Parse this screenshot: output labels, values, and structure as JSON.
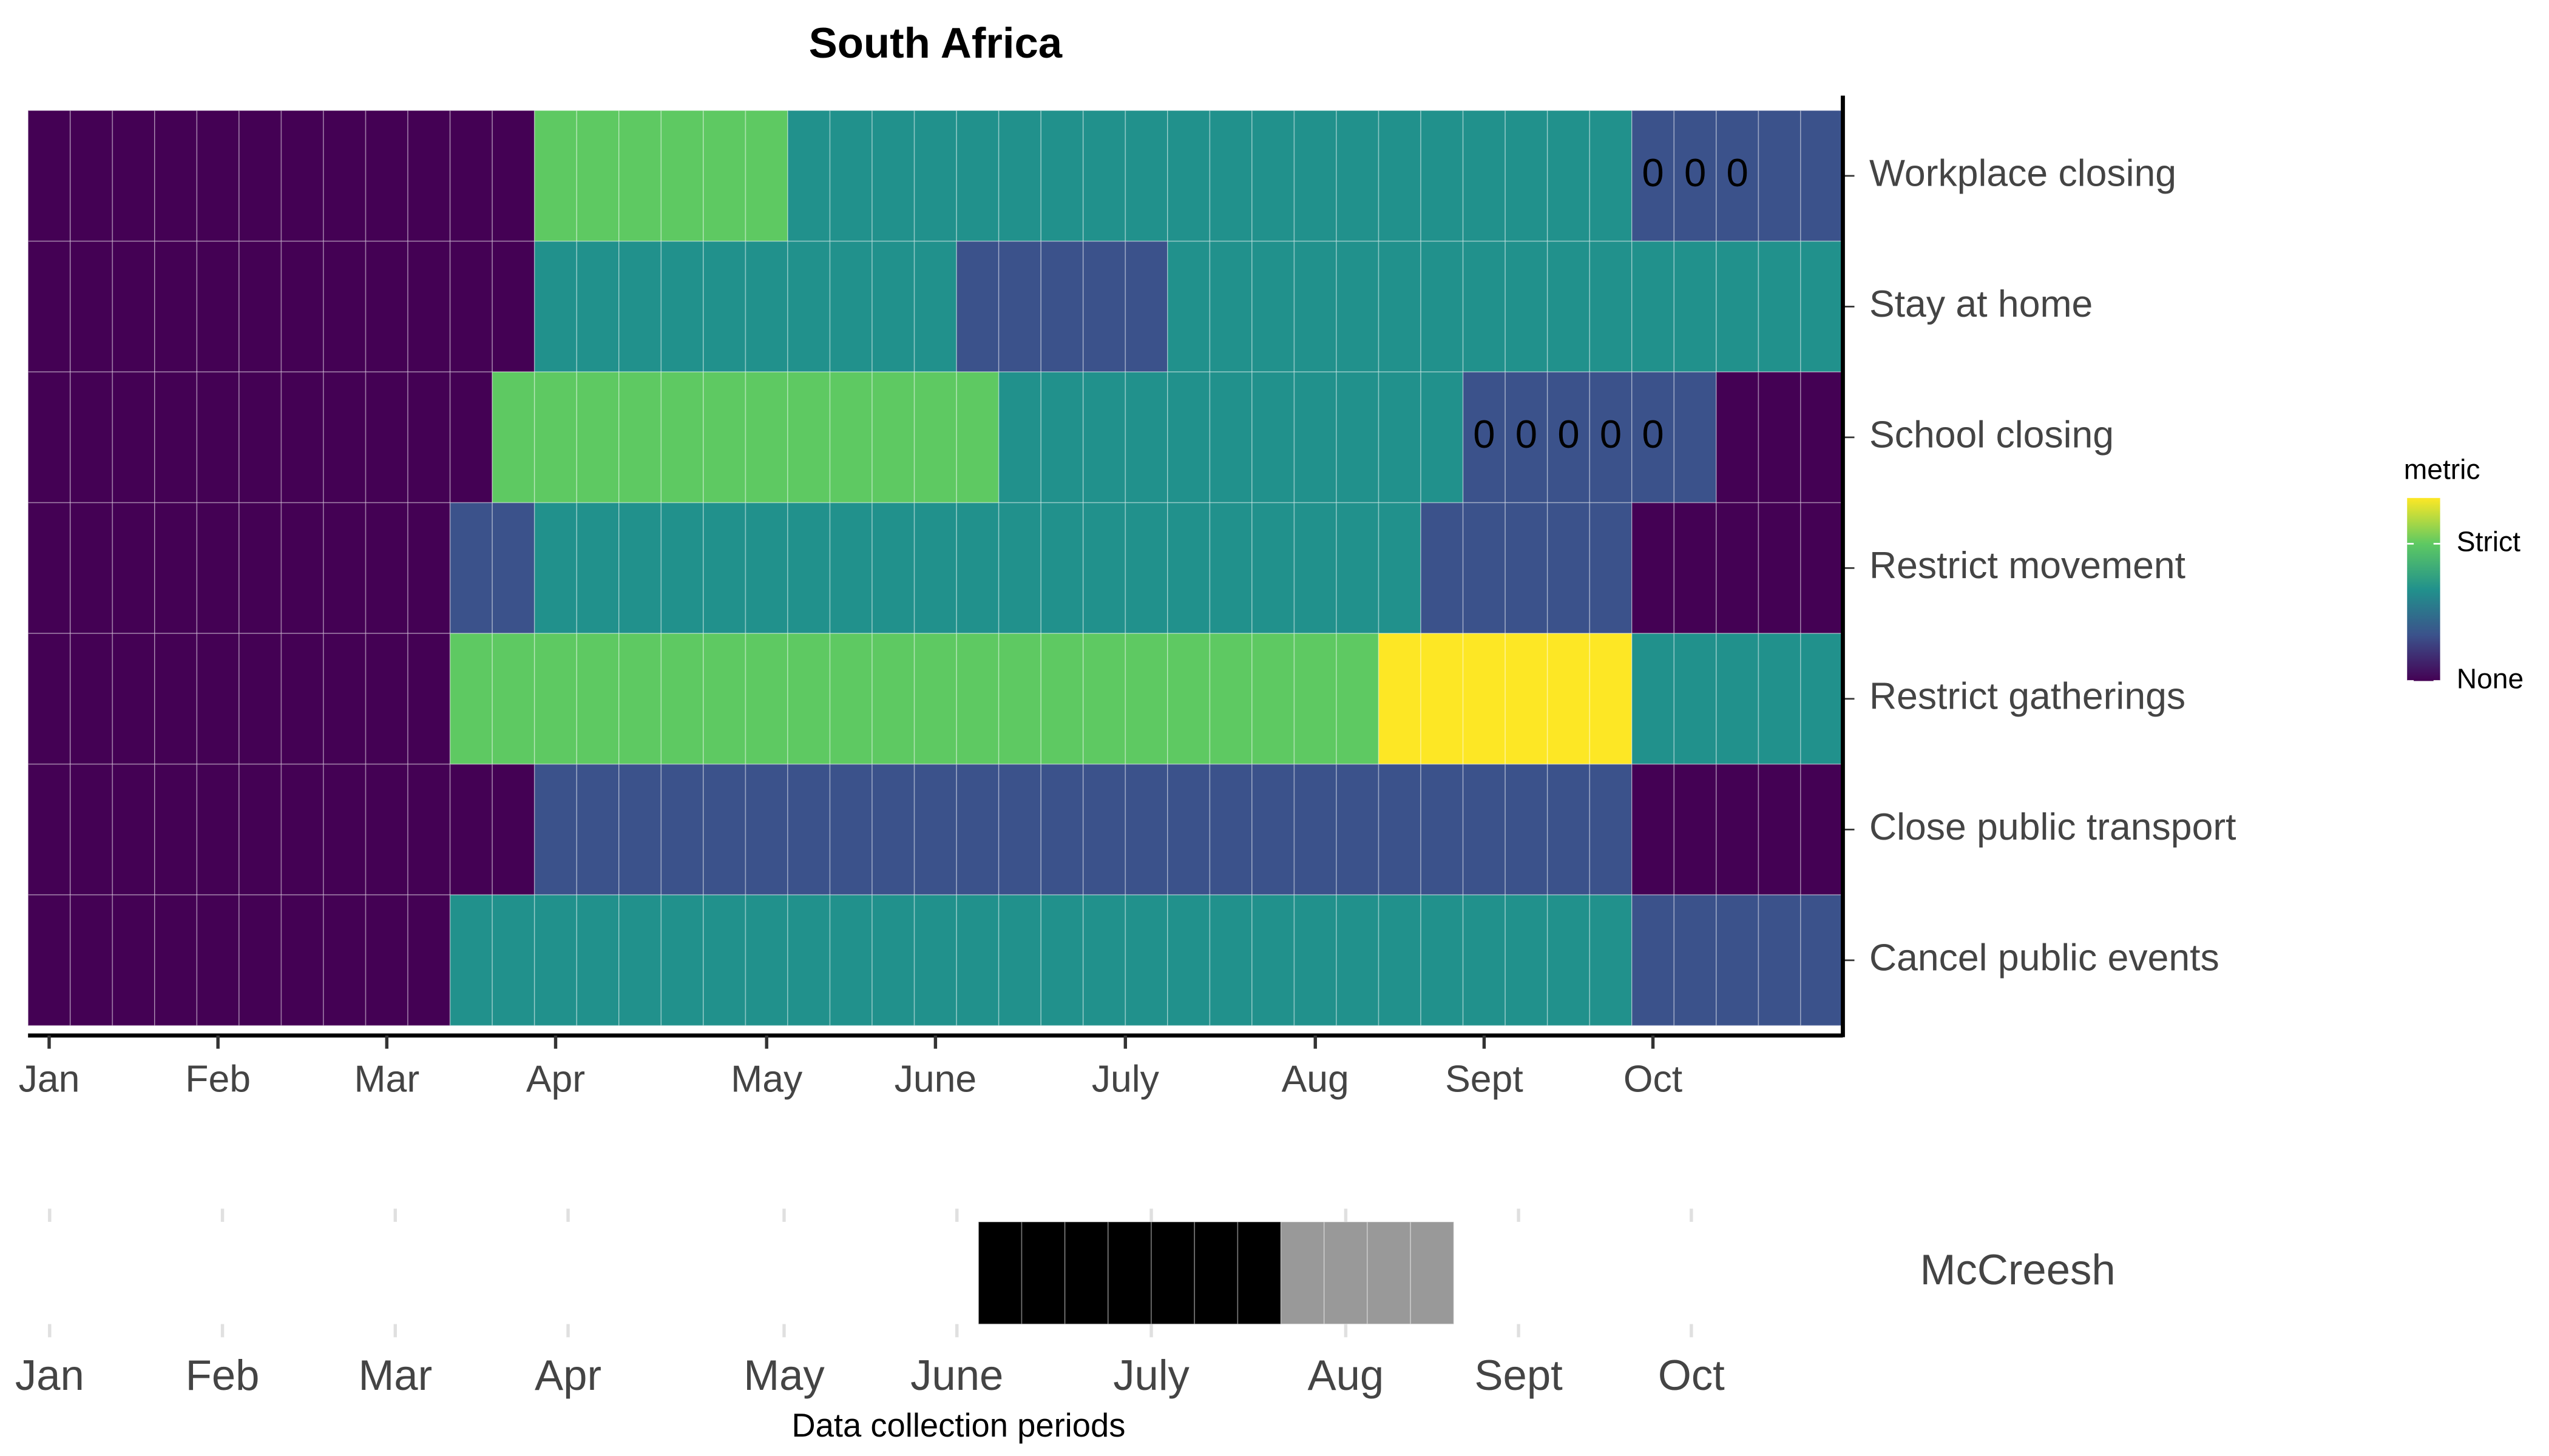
{
  "chart_data": [
    {
      "type": "heatmap",
      "title": "South Africa",
      "rows": [
        "Workplace closing",
        "Stay at home",
        "School closing",
        "Restrict movement",
        "Restrict gatherings",
        "Close public transport",
        "Cancel public events"
      ],
      "values": [
        [
          0,
          0,
          0,
          0,
          0,
          0,
          0,
          0,
          0,
          0,
          0,
          0,
          3,
          3,
          3,
          3,
          3,
          3,
          2,
          2,
          2,
          2,
          2,
          2,
          2,
          2,
          2,
          2,
          2,
          2,
          2,
          2,
          2,
          2,
          2,
          2,
          2,
          2,
          1,
          1,
          1,
          1,
          1
        ],
        [
          0,
          0,
          0,
          0,
          0,
          0,
          0,
          0,
          0,
          0,
          0,
          0,
          2,
          2,
          2,
          2,
          2,
          2,
          2,
          2,
          2,
          2,
          1,
          1,
          1,
          1,
          1,
          2,
          2,
          2,
          2,
          2,
          2,
          2,
          2,
          2,
          2,
          2,
          2,
          2,
          2,
          2,
          2
        ],
        [
          0,
          0,
          0,
          0,
          0,
          0,
          0,
          0,
          0,
          0,
          0,
          3,
          3,
          3,
          3,
          3,
          3,
          3,
          3,
          3,
          3,
          3,
          3,
          2,
          2,
          2,
          2,
          2,
          2,
          2,
          2,
          2,
          2,
          2,
          1,
          1,
          1,
          1,
          1,
          1,
          0,
          0,
          0
        ],
        [
          0,
          0,
          0,
          0,
          0,
          0,
          0,
          0,
          0,
          0,
          1,
          1,
          2,
          2,
          2,
          2,
          2,
          2,
          2,
          2,
          2,
          2,
          2,
          2,
          2,
          2,
          2,
          2,
          2,
          2,
          2,
          2,
          2,
          1,
          1,
          1,
          1,
          1,
          0,
          0,
          0,
          0,
          0
        ],
        [
          0,
          0,
          0,
          0,
          0,
          0,
          0,
          0,
          0,
          0,
          3,
          3,
          3,
          3,
          3,
          3,
          3,
          3,
          3,
          3,
          3,
          3,
          3,
          3,
          3,
          3,
          3,
          3,
          3,
          3,
          3,
          3,
          4,
          4,
          4,
          4,
          4,
          4,
          2,
          2,
          2,
          2,
          2
        ],
        [
          0,
          0,
          0,
          0,
          0,
          0,
          0,
          0,
          0,
          0,
          0,
          0,
          1,
          1,
          1,
          1,
          1,
          1,
          1,
          1,
          1,
          1,
          1,
          1,
          1,
          1,
          1,
          1,
          1,
          1,
          1,
          1,
          1,
          1,
          1,
          1,
          1,
          1,
          0,
          0,
          0,
          0,
          0
        ],
        [
          0,
          0,
          0,
          0,
          0,
          0,
          0,
          0,
          0,
          0,
          2,
          2,
          2,
          2,
          2,
          2,
          2,
          2,
          2,
          2,
          2,
          2,
          2,
          2,
          2,
          2,
          2,
          2,
          2,
          2,
          2,
          2,
          2,
          2,
          2,
          2,
          2,
          2,
          1,
          1,
          1,
          1,
          1
        ]
      ],
      "colors": [
        "#440154",
        "#3b528b",
        "#21918c",
        "#5ec962",
        "#fde725"
      ],
      "annotations": [
        {
          "row": 0,
          "col": 38,
          "text": "0"
        },
        {
          "row": 0,
          "col": 39,
          "text": "0"
        },
        {
          "row": 0,
          "col": 40,
          "text": "0"
        },
        {
          "row": 2,
          "col": 34,
          "text": "0"
        },
        {
          "row": 2,
          "col": 35,
          "text": "0"
        },
        {
          "row": 2,
          "col": 36,
          "text": "0"
        },
        {
          "row": 2,
          "col": 37,
          "text": "0"
        },
        {
          "row": 2,
          "col": 38,
          "text": "0"
        }
      ],
      "xlim": [
        -0.5,
        42.5
      ],
      "xticks": [
        {
          "value": 0,
          "label": "Jan"
        },
        {
          "value": 4,
          "label": "Feb"
        },
        {
          "value": 8,
          "label": "Mar"
        },
        {
          "value": 12,
          "label": "Apr"
        },
        {
          "value": 17,
          "label": "May"
        },
        {
          "value": 21,
          "label": "June"
        },
        {
          "value": 25.5,
          "label": "July"
        },
        {
          "value": 30,
          "label": "Aug"
        },
        {
          "value": 34,
          "label": "Sept"
        },
        {
          "value": 38,
          "label": "Oct"
        }
      ],
      "legend": {
        "title": "metric",
        "lim": [
          0,
          4
        ],
        "ticks": [
          {
            "value": 0,
            "label": "None"
          },
          {
            "value": 3,
            "label": "Strict"
          }
        ]
      }
    },
    {
      "type": "strip",
      "row_label": "McCreesh",
      "xlabel": "Data collection periods",
      "x": [
        22,
        23,
        24,
        25,
        26,
        27,
        28,
        29,
        30,
        31,
        32
      ],
      "colors": [
        "#000000",
        "#000000",
        "#000000",
        "#000000",
        "#000000",
        "#000000",
        "#000000",
        "#999999",
        "#999999",
        "#999999",
        "#999999"
      ],
      "xlim": [
        -0.5,
        42.5
      ],
      "xticks": [
        {
          "value": 0,
          "label": "Jan"
        },
        {
          "value": 4,
          "label": "Feb"
        },
        {
          "value": 8,
          "label": "Mar"
        },
        {
          "value": 12,
          "label": "Apr"
        },
        {
          "value": 17,
          "label": "May"
        },
        {
          "value": 21,
          "label": "June"
        },
        {
          "value": 25.5,
          "label": "July"
        },
        {
          "value": 30,
          "label": "Aug"
        },
        {
          "value": 34,
          "label": "Sept"
        },
        {
          "value": 38,
          "label": "Oct"
        }
      ]
    }
  ]
}
